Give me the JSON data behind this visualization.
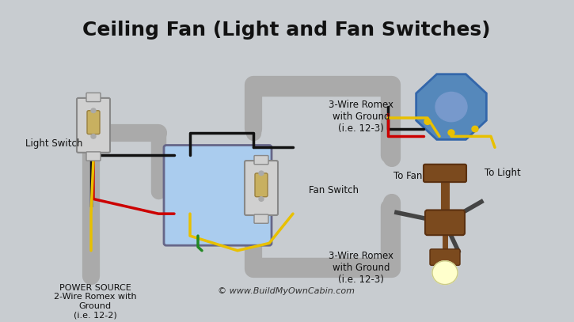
{
  "title": "Ceiling Fan (Light and Fan Switches)",
  "bg_color": "#c8ccd0",
  "title_fontsize": 18,
  "title_color": "#111111",
  "copyright": "© www.BuildMyOwnCabin.com",
  "labels": {
    "light_switch": "Light Switch",
    "fan_switch": "Fan Switch",
    "power_source": "POWER SOURCE\n2-Wire Romex with\nGround\n(i.e. 12-2)",
    "romex_top": "3-Wire Romex\nwith Ground\n(i.e. 12-3)",
    "romex_bottom": "3-Wire Romex\nwith Ground\n(i.e. 12-3)",
    "to_fan": "To Fan",
    "to_light": "To Light"
  },
  "colors": {
    "black_wire": "#111111",
    "white_wire": "#f0f0f0",
    "red_wire": "#cc0000",
    "yellow_wire": "#e8c000",
    "green_wire": "#228822",
    "gray_conduit": "#aaaaaa",
    "switch_body": "#d0d0d0",
    "switch_box": "#aaccee",
    "brown_mount": "#7b4a1e",
    "fan_blade": "#555555",
    "ceiling_plate": "#6699cc",
    "bulb_color": "#ffffcc"
  }
}
